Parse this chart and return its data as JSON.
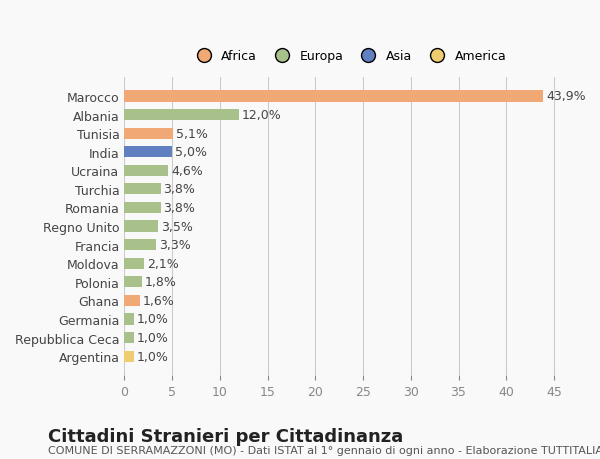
{
  "countries": [
    "Marocco",
    "Albania",
    "Tunisia",
    "India",
    "Ucraina",
    "Turchia",
    "Romania",
    "Regno Unito",
    "Francia",
    "Moldova",
    "Polonia",
    "Ghana",
    "Germania",
    "Repubblica Ceca",
    "Argentina"
  ],
  "values": [
    43.9,
    12.0,
    5.1,
    5.0,
    4.6,
    3.8,
    3.8,
    3.5,
    3.3,
    2.1,
    1.8,
    1.6,
    1.0,
    1.0,
    1.0
  ],
  "labels": [
    "43,9%",
    "12,0%",
    "5,1%",
    "5,0%",
    "4,6%",
    "3,8%",
    "3,8%",
    "3,5%",
    "3,3%",
    "2,1%",
    "1,8%",
    "1,6%",
    "1,0%",
    "1,0%",
    "1,0%"
  ],
  "continents": [
    "Africa",
    "Europa",
    "Africa",
    "Asia",
    "Europa",
    "Europa",
    "Europa",
    "Europa",
    "Europa",
    "Europa",
    "Europa",
    "Africa",
    "Europa",
    "Europa",
    "America"
  ],
  "colors": {
    "Africa": "#F0A875",
    "Europa": "#A8C08A",
    "Asia": "#6080C0",
    "America": "#F0CC70"
  },
  "legend_order": [
    "Africa",
    "Europa",
    "Asia",
    "America"
  ],
  "legend_colors": [
    "#F0A875",
    "#A8C08A",
    "#6080C0",
    "#F0CC70"
  ],
  "xlim": [
    0,
    47
  ],
  "xticks": [
    0,
    5,
    10,
    15,
    20,
    25,
    30,
    35,
    40,
    45
  ],
  "title": "Cittadini Stranieri per Cittadinanza",
  "subtitle": "COMUNE DI SERRAMAZZONI (MO) - Dati ISTAT al 1° gennaio di ogni anno - Elaborazione TUTTITALIA.IT",
  "bg_color": "#f9f9f9",
  "bar_height": 0.6,
  "label_fontsize": 9,
  "tick_fontsize": 9,
  "title_fontsize": 13,
  "subtitle_fontsize": 8
}
